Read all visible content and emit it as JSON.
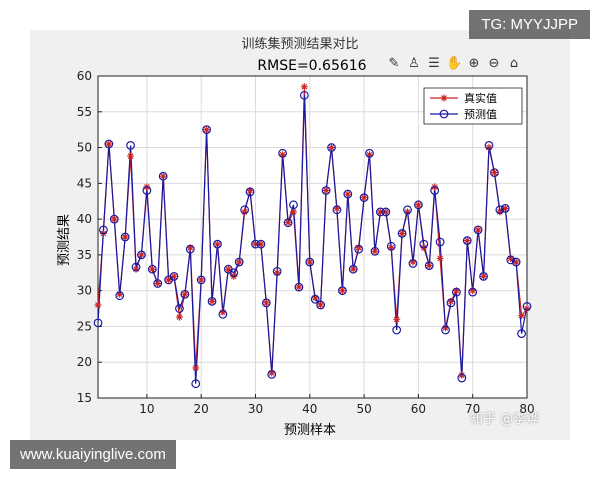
{
  "watermarks": {
    "telegram": "TG: MYYJJPP",
    "url": "www.kuaiyinglive.com",
    "zhihu": "知乎 @李烨"
  },
  "toolbar": {
    "icons": [
      "edit-plot-icon",
      "data-cursor-icon",
      "insert-legend-icon",
      "pan-hand-icon",
      "zoom-in-icon",
      "zoom-out-icon",
      "home-view-icon"
    ]
  },
  "chart_data": {
    "type": "line",
    "title": "训练集预测结果对比",
    "subtitle": "RMSE=0.65616",
    "xlabel": "预测样本",
    "ylabel": "预测结果",
    "xlim": [
      1,
      80
    ],
    "ylim": [
      15,
      60
    ],
    "xticks": [
      10,
      20,
      30,
      40,
      50,
      60,
      70,
      80
    ],
    "yticks": [
      15,
      20,
      25,
      30,
      35,
      40,
      45,
      50,
      55,
      60
    ],
    "grid": true,
    "legend_position": "top-right",
    "x": [
      1,
      2,
      3,
      4,
      5,
      6,
      7,
      8,
      9,
      10,
      11,
      12,
      13,
      14,
      15,
      16,
      17,
      18,
      19,
      20,
      21,
      22,
      23,
      24,
      25,
      26,
      27,
      28,
      29,
      30,
      31,
      32,
      33,
      34,
      35,
      36,
      37,
      38,
      39,
      40,
      41,
      42,
      43,
      44,
      45,
      46,
      47,
      48,
      49,
      50,
      51,
      52,
      53,
      54,
      55,
      56,
      57,
      58,
      59,
      60,
      61,
      62,
      63,
      64,
      65,
      66,
      67,
      68,
      69,
      70,
      71,
      72,
      73,
      74,
      75,
      76,
      77,
      78,
      79,
      80
    ],
    "series": [
      {
        "name": "真实值",
        "color": "#cc2222",
        "marker": "star",
        "values": [
          28.0,
          38.0,
          50.5,
          40.0,
          29.5,
          37.5,
          48.8,
          33.0,
          35.0,
          44.5,
          33.0,
          31.0,
          46.0,
          31.5,
          32.0,
          26.3,
          29.5,
          36.0,
          19.2,
          31.5,
          52.5,
          28.5,
          36.5,
          27.0,
          33.0,
          32.0,
          34.0,
          41.0,
          44.0,
          36.5,
          36.5,
          28.3,
          18.5,
          32.5,
          49.0,
          39.5,
          41.0,
          30.5,
          58.5,
          34.0,
          29.0,
          28.0,
          44.0,
          50.0,
          41.5,
          30.0,
          43.5,
          33.0,
          36.0,
          43.0,
          49.0,
          35.5,
          41.0,
          41.0,
          36.0,
          26.0,
          38.0,
          41.0,
          34.0,
          42.0,
          36.0,
          33.5,
          44.5,
          34.5,
          24.8,
          28.5,
          30.0,
          18.2,
          37.0,
          30.0,
          38.5,
          32.0,
          50.0,
          46.5,
          41.0,
          41.5,
          34.5,
          34.0,
          26.5,
          27.5
        ]
      },
      {
        "name": "预测值",
        "color": "#1a1aa0",
        "marker": "circle",
        "values": [
          25.5,
          38.5,
          50.5,
          40.0,
          29.3,
          37.5,
          50.3,
          33.3,
          35.0,
          44.0,
          33.0,
          31.0,
          46.0,
          31.5,
          32.0,
          27.5,
          29.5,
          35.8,
          17.0,
          31.5,
          52.5,
          28.5,
          36.5,
          26.7,
          33.0,
          32.5,
          34.0,
          41.3,
          43.8,
          36.5,
          36.5,
          28.3,
          18.3,
          32.7,
          49.2,
          39.5,
          42.0,
          30.5,
          57.3,
          34.0,
          28.8,
          28.0,
          44.0,
          50.0,
          41.3,
          30.0,
          43.5,
          33.0,
          35.8,
          43.0,
          49.2,
          35.5,
          41.0,
          41.0,
          36.2,
          24.5,
          38.0,
          41.3,
          33.8,
          42.0,
          36.5,
          33.5,
          44.0,
          36.8,
          24.5,
          28.3,
          29.8,
          17.8,
          37.0,
          29.8,
          38.5,
          32.0,
          50.3,
          46.5,
          41.3,
          41.5,
          34.3,
          34.0,
          24.0,
          27.8
        ]
      }
    ]
  }
}
